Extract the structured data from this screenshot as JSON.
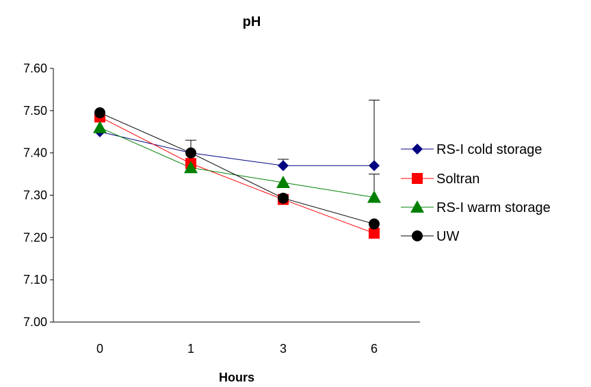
{
  "chart_data": {
    "type": "line",
    "title": "pH",
    "xlabel": "Hours",
    "ylabel": "",
    "categories": [
      "0",
      "1",
      "3",
      "6"
    ],
    "ylim": [
      7.0,
      7.6
    ],
    "yticks": [
      "7.00",
      "7.10",
      "7.20",
      "7.30",
      "7.40",
      "7.50",
      "7.60"
    ],
    "grid": false,
    "legend": "right",
    "series": [
      {
        "name": "RS-I cold storage",
        "values": [
          7.45,
          7.4,
          7.37,
          7.37
        ],
        "color": "#000080",
        "marker": "diamond",
        "error": [
          0,
          0.03,
          0.015,
          0.155
        ]
      },
      {
        "name": "Soltran",
        "values": [
          7.485,
          7.375,
          7.29,
          7.21
        ],
        "color": "#ff0000",
        "marker": "square",
        "error": [
          0,
          0,
          0,
          0
        ]
      },
      {
        "name": "RS-I warm storage",
        "values": [
          7.46,
          7.365,
          7.33,
          7.295
        ],
        "color": "#008000",
        "marker": "triangle",
        "error": [
          0,
          0,
          0,
          0.055
        ]
      },
      {
        "name": "UW",
        "values": [
          7.495,
          7.4,
          7.293,
          7.232
        ],
        "color": "#000000",
        "marker": "circle",
        "error": [
          0,
          0,
          0,
          0
        ]
      }
    ]
  }
}
